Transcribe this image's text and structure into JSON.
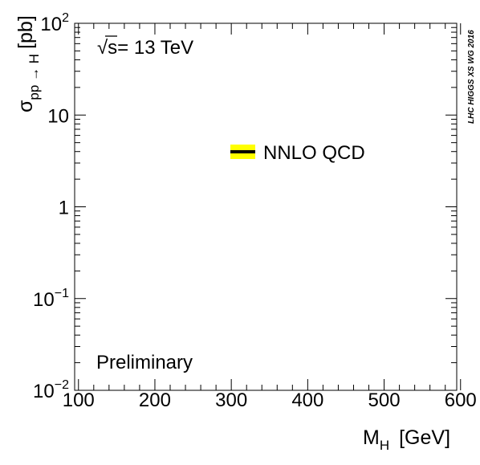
{
  "chart_data": {
    "type": "line",
    "x_axis": {
      "label_main": "M",
      "label_sub": "H",
      "label_unit": "[GeV]",
      "range": [
        95,
        595
      ],
      "ticks": [
        100,
        200,
        300,
        400,
        500,
        600
      ],
      "tick_labels": [
        "100",
        "200",
        "300",
        "400",
        "500",
        "600"
      ]
    },
    "y_axis": {
      "label_main": "σ",
      "label_sub": "pp → H",
      "label_unit": "[pb]",
      "scale": "log",
      "range": [
        0.01,
        100
      ],
      "ticks": [
        {
          "value": 0.01,
          "base": "10",
          "exp": "−2"
        },
        {
          "value": 0.1,
          "base": "10",
          "exp": "−1"
        },
        {
          "value": 1,
          "base": "1",
          "exp": ""
        },
        {
          "value": 10,
          "base": "10",
          "exp": ""
        },
        {
          "value": 100,
          "base": "10",
          "exp": "2"
        }
      ]
    },
    "annotations": {
      "energy_sqrt": "√",
      "energy_s": "s",
      "energy_rest": "= 13 TeV",
      "status": "Preliminary",
      "side_label": "LHC HIGGS XS WG 2016"
    },
    "legend": [
      {
        "name": "NNLO QCD",
        "line_color": "#000000",
        "band_color": "#ffff00"
      }
    ],
    "series": [],
    "grid": false
  }
}
